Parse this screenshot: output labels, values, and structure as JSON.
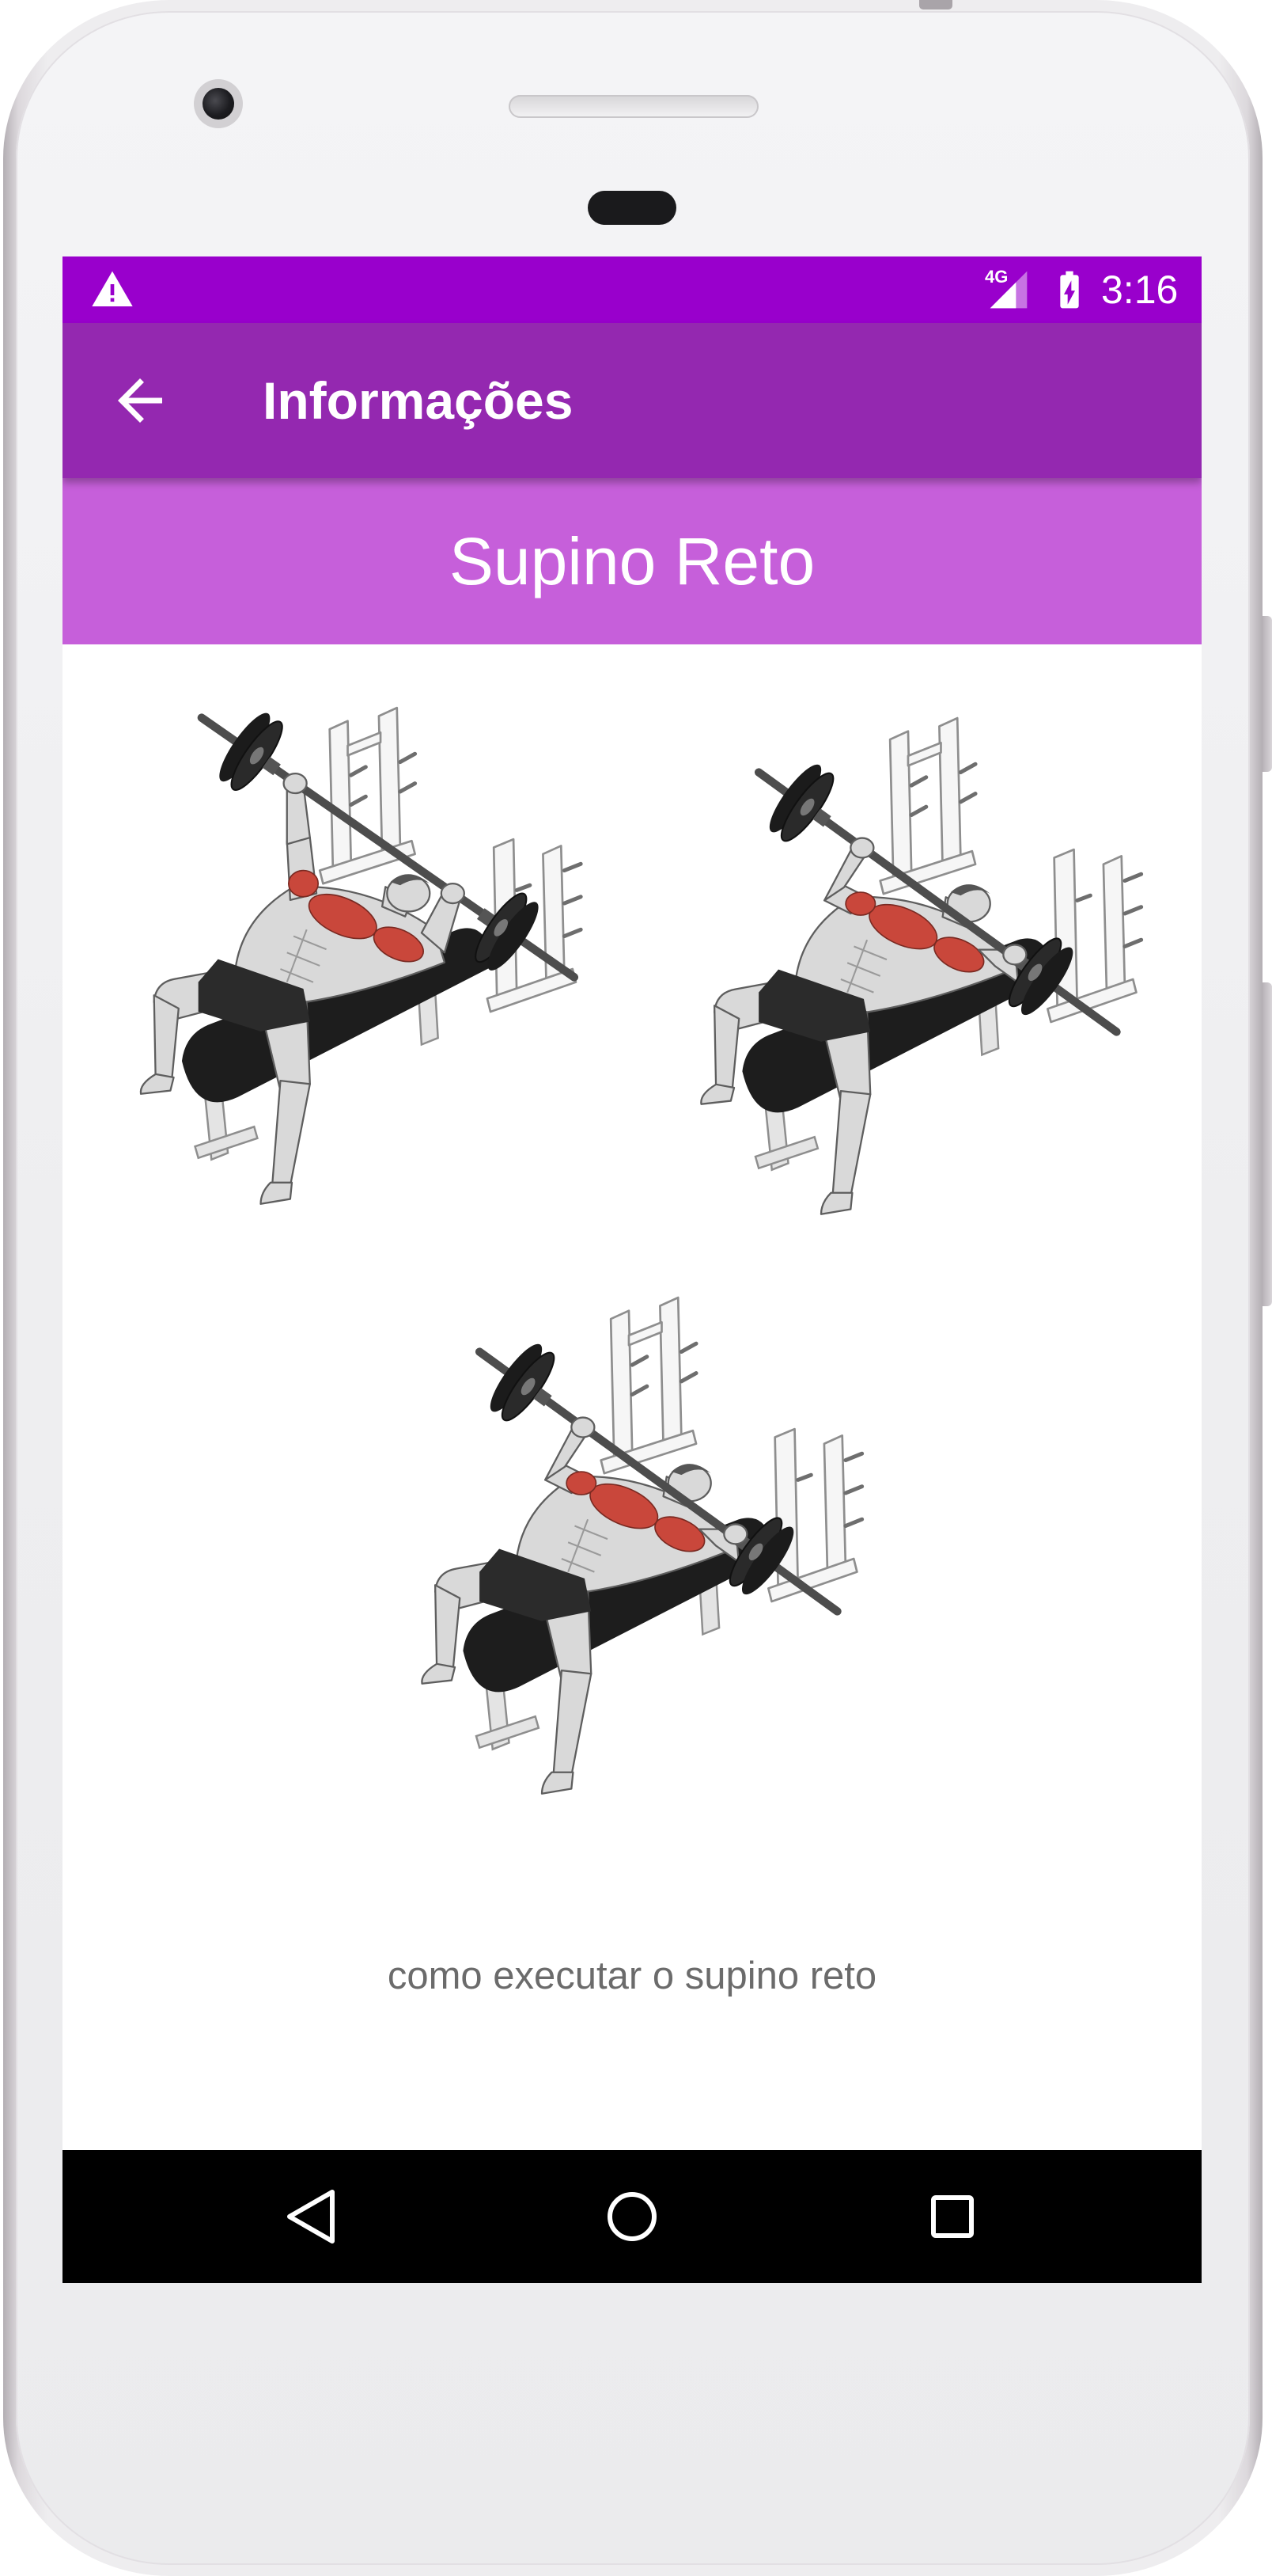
{
  "status_bar": {
    "network_type": "4G",
    "time": "3:16",
    "icons": {
      "alert": "warning-icon",
      "signal": "cell-signal-icon",
      "battery": "battery-charging-icon"
    }
  },
  "app_bar": {
    "title": "Informações",
    "back_icon": "arrow-back-icon"
  },
  "exercise": {
    "title": "Supino Reto",
    "caption": "como executar o supino reto"
  },
  "nav_bar": {
    "icons": [
      "nav-back-icon",
      "nav-home-icon",
      "nav-recents-icon"
    ]
  },
  "colors": {
    "status_bar": "#9900cc",
    "app_bar": "#9428b0",
    "title_band": "#c65fda",
    "caption_text": "#6b6b6b",
    "nav_bar": "#000000"
  }
}
